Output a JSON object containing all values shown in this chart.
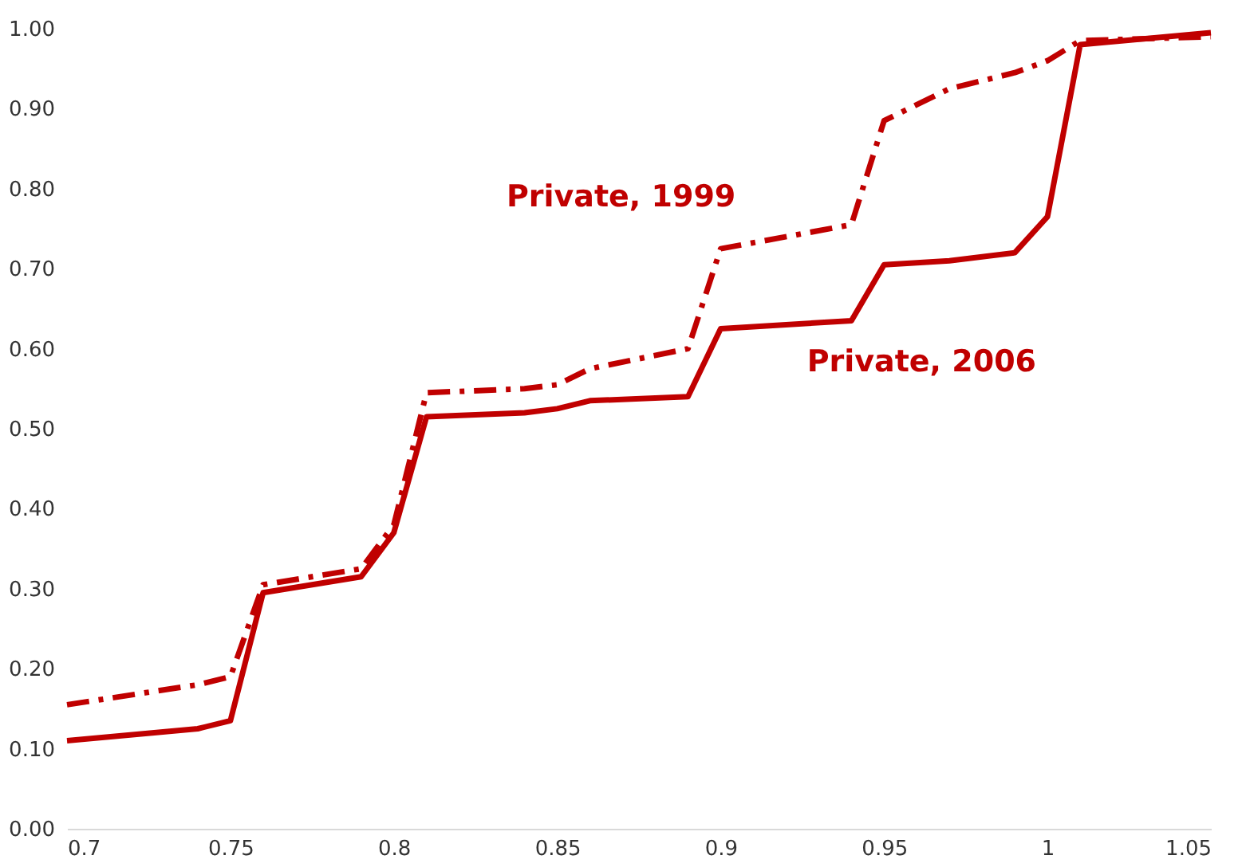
{
  "chart_data": {
    "type": "line",
    "xlim": [
      0.7,
      1.05
    ],
    "xticks": [
      0.7,
      0.75,
      0.8,
      0.85,
      0.9,
      0.95,
      1,
      1.05
    ],
    "ylim": [
      0,
      1
    ],
    "yticks": [
      {
        "value": 0,
        "label": "0.00"
      },
      {
        "value": 0.1,
        "label": "0.10"
      },
      {
        "value": 0.2,
        "label": "0.20"
      },
      {
        "value": 0.3,
        "label": "0.30"
      },
      {
        "value": 0.4,
        "label": "0.40"
      },
      {
        "value": 0.5,
        "label": "0.50"
      },
      {
        "value": 0.6,
        "label": "0.60"
      },
      {
        "value": 0.7,
        "label": "0.70"
      },
      {
        "value": 0.8,
        "label": "0.80"
      },
      {
        "value": 0.9,
        "label": "0.90"
      },
      {
        "value": 1,
        "label": "1.00"
      }
    ],
    "grid": false,
    "legend": false,
    "series": [
      {
        "name": "Private, 1999",
        "color": "#c00000",
        "line_style": "dashed",
        "x": [
          0.7,
          0.74,
          0.75,
          0.76,
          0.79,
          0.8,
          0.81,
          0.84,
          0.85,
          0.86,
          0.89,
          0.9,
          0.94,
          0.95,
          0.97,
          0.99,
          1.0,
          1.01,
          1.05
        ],
        "values": [
          0.155,
          0.18,
          0.19,
          0.305,
          0.325,
          0.38,
          0.545,
          0.55,
          0.555,
          0.575,
          0.6,
          0.725,
          0.755,
          0.885,
          0.925,
          0.945,
          0.96,
          0.985,
          0.99
        ]
      },
      {
        "name": "Private, 2006",
        "color": "#c00000",
        "line_style": "solid",
        "x": [
          0.7,
          0.74,
          0.75,
          0.76,
          0.79,
          0.8,
          0.81,
          0.84,
          0.85,
          0.86,
          0.89,
          0.9,
          0.94,
          0.95,
          0.97,
          0.99,
          1.0,
          1.01,
          1.05
        ],
        "values": [
          0.11,
          0.125,
          0.135,
          0.295,
          0.315,
          0.37,
          0.515,
          0.52,
          0.525,
          0.535,
          0.54,
          0.625,
          0.635,
          0.705,
          0.71,
          0.72,
          0.765,
          0.98,
          0.995
        ]
      }
    ]
  }
}
